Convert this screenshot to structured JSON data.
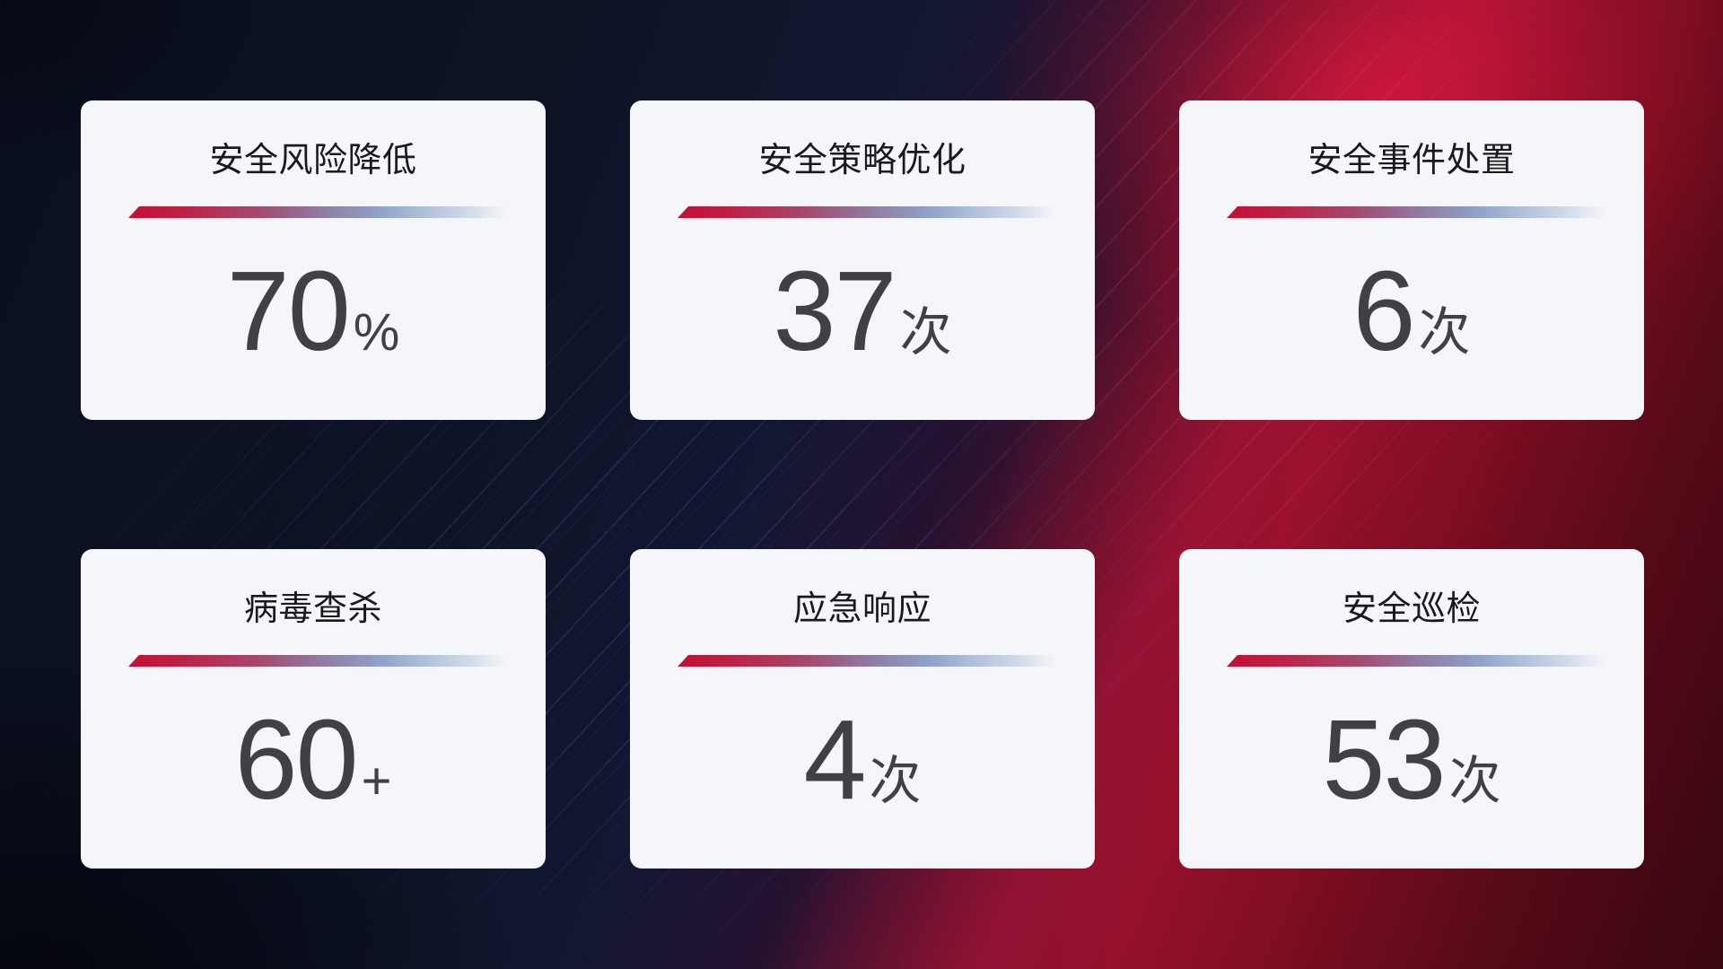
{
  "cards": [
    {
      "title": "安全风险降低",
      "value": "70",
      "unit": "%"
    },
    {
      "title": "安全策略优化",
      "value": "37",
      "unit": "次"
    },
    {
      "title": "安全事件处置",
      "value": "6",
      "unit": "次"
    },
    {
      "title": "病毒查杀",
      "value": "60",
      "unit": "+"
    },
    {
      "title": "应急响应",
      "value": "4",
      "unit": "次"
    },
    {
      "title": "安全巡检",
      "value": "53",
      "unit": "次"
    }
  ],
  "colors": {
    "card_background": "#f5f6f9",
    "title_text": "#1a1a1c",
    "value_text": "#3f4145",
    "divider_red": "#c60e34",
    "divider_steel_blue": "#8fa2c9",
    "background_navy": "#0e1529",
    "background_crimson": "#8e102a"
  }
}
